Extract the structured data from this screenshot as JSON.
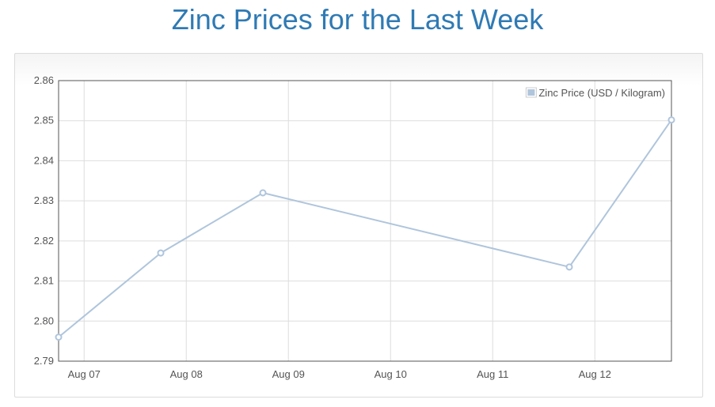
{
  "page": {
    "title": "Zinc Prices for the Last Week"
  },
  "colors": {
    "title": "#2f7ab4",
    "series_line": "#afc5dc",
    "grid": "#dddddd",
    "axis": "#545454",
    "tick_text": "#545454"
  },
  "chart_data": {
    "type": "line",
    "title": "",
    "xlabel": "",
    "ylabel": "",
    "ylim": [
      2.79,
      2.86
    ],
    "yticks": [
      "2.79",
      "2.80",
      "2.81",
      "2.82",
      "2.83",
      "2.84",
      "2.85",
      "2.86"
    ],
    "xlim": [
      "2015-08-06 18:00",
      "2015-08-12 18:00"
    ],
    "xticks": [
      {
        "date": "2015-08-07 00:00",
        "label": "Aug 07"
      },
      {
        "date": "2015-08-08 00:00",
        "label": "Aug 08"
      },
      {
        "date": "2015-08-09 00:00",
        "label": "Aug 09"
      },
      {
        "date": "2015-08-10 00:00",
        "label": "Aug 10"
      },
      {
        "date": "2015-08-11 00:00",
        "label": "Aug 11"
      },
      {
        "date": "2015-08-12 00:00",
        "label": "Aug 12"
      }
    ],
    "grid": true,
    "legend_position": "top-right",
    "series": [
      {
        "name": "Zinc Price (USD / Kilogram)",
        "color": "#afc5dc",
        "points": [
          {
            "x": "2015-08-06 18:00",
            "y": 2.796
          },
          {
            "x": "2015-08-07 18:00",
            "y": 2.817
          },
          {
            "x": "2015-08-08 18:00",
            "y": 2.832
          },
          {
            "x": "2015-08-11 18:00",
            "y": 2.8135
          },
          {
            "x": "2015-08-12 18:00",
            "y": 2.8502
          }
        ]
      }
    ]
  }
}
